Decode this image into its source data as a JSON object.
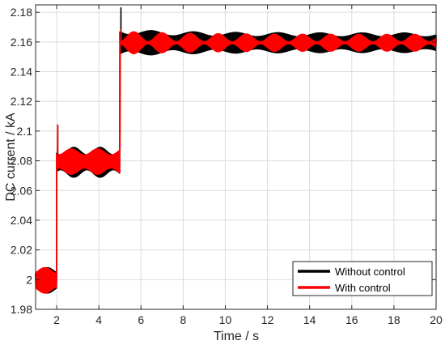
{
  "chart_data": {
    "type": "line",
    "title": "",
    "xlabel": "Time / s",
    "ylabel": "DC current / kA",
    "xlim": [
      1,
      20
    ],
    "ylim": [
      1.98,
      2.185
    ],
    "xticks": [
      2,
      4,
      6,
      8,
      10,
      12,
      14,
      16,
      18,
      20
    ],
    "yticks": [
      1.98,
      2.0,
      2.02,
      2.04,
      2.06,
      2.08,
      2.1,
      2.12,
      2.14,
      2.16,
      2.18
    ],
    "grid": true,
    "legend_position": "bottom-right",
    "series": [
      {
        "name": "Without control",
        "color": "#000000",
        "description_levels": [
          {
            "t_start": 1.0,
            "t_end": 2.0,
            "mean": 2.0,
            "envelope": [
              1.991,
              2.008
            ]
          },
          {
            "t_start": 2.0,
            "t_end": 5.0,
            "mean": 2.078,
            "envelope": [
              2.069,
              2.089
            ]
          },
          {
            "t_start": 5.0,
            "t_end": 20.0,
            "mean": 2.159,
            "envelope": [
              2.153,
              2.166
            ]
          }
        ],
        "peaks": [
          {
            "x": 2.05,
            "y": 2.104
          },
          {
            "x": 5.05,
            "y": 2.183
          }
        ]
      },
      {
        "name": "With control",
        "color": "#ff0000",
        "description_levels": [
          {
            "t_start": 1.0,
            "t_end": 2.0,
            "mean": 2.0,
            "envelope": [
              1.991,
              2.008
            ]
          },
          {
            "t_start": 2.0,
            "t_end": 5.0,
            "mean": 2.079,
            "envelope": [
              2.071,
              2.088
            ]
          },
          {
            "t_start": 5.0,
            "t_end": 20.0,
            "mean": 2.159,
            "envelope": [
              2.154,
              2.165
            ]
          }
        ],
        "peaks": [
          {
            "x": 2.05,
            "y": 2.104
          },
          {
            "x": 5.05,
            "y": 2.168
          }
        ]
      }
    ]
  }
}
